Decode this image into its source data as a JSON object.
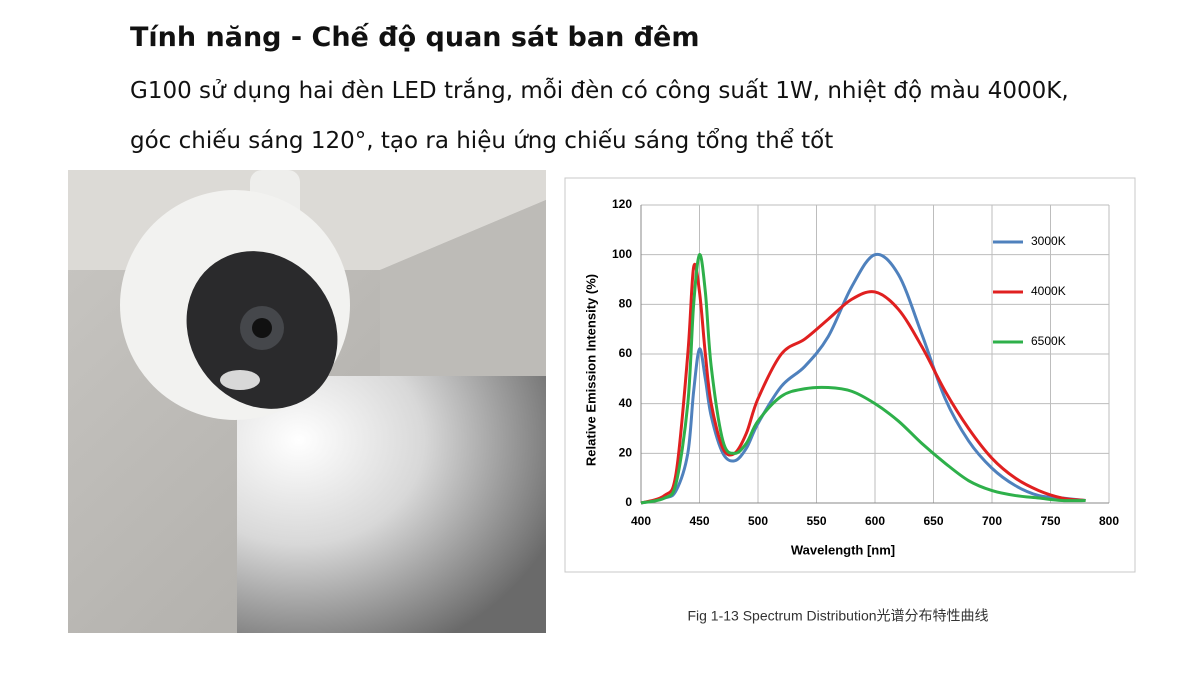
{
  "header": {
    "title": "Tính năng - Chế độ quan sát ban đêm",
    "body": "G100 sử dụng hai đèn LED trắng, mỗi đèn có công suất 1W, nhiệt độ màu 4000K, góc chiếu sáng 120°, tạo ra hiệu ứng chiếu sáng tổng thể tốt"
  },
  "chart_data": {
    "type": "line",
    "caption": "Fig 1-13 Spectrum Distribution光谱分布特性曲线",
    "x_label": "Wavelength  [nm]",
    "y_label": "Relative Emission Intensity (%)",
    "x": [
      400,
      420,
      430,
      440,
      445,
      450,
      455,
      460,
      470,
      480,
      490,
      500,
      520,
      540,
      560,
      580,
      600,
      620,
      640,
      660,
      680,
      700,
      720,
      740,
      760,
      780
    ],
    "series": [
      {
        "name": "3000K",
        "color": "#4f81bd",
        "values": [
          0,
          2,
          5,
          20,
          45,
          62,
          50,
          35,
          20,
          17,
          22,
          32,
          47,
          55,
          67,
          87,
          100,
          92,
          68,
          42,
          25,
          14,
          7,
          3,
          2,
          1
        ]
      },
      {
        "name": "4000K",
        "color": "#e02020",
        "values": [
          0,
          3,
          12,
          60,
          95,
          85,
          60,
          40,
          22,
          20,
          28,
          42,
          60,
          66,
          74,
          82,
          85,
          78,
          63,
          45,
          30,
          18,
          10,
          5,
          2,
          1
        ]
      },
      {
        "name": "6500K",
        "color": "#2eb04a",
        "values": [
          0,
          2,
          8,
          40,
          80,
          100,
          85,
          55,
          25,
          20,
          24,
          33,
          43,
          46,
          46.5,
          45,
          40,
          33,
          24,
          16,
          9,
          5,
          3,
          2,
          1,
          1
        ]
      }
    ],
    "xlim": [
      400,
      800
    ],
    "xticks": [
      400,
      450,
      500,
      550,
      600,
      650,
      700,
      750,
      800
    ],
    "ylim": [
      0,
      120
    ],
    "yticks": [
      0,
      20,
      40,
      60,
      80,
      100,
      120
    ],
    "grid": true,
    "legend": "right"
  }
}
